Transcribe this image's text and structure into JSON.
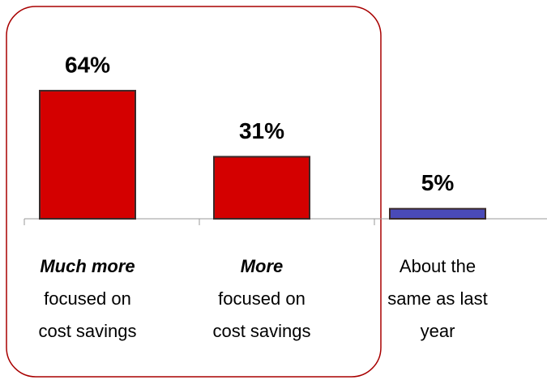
{
  "chart_data": {
    "type": "bar",
    "categories": [
      [
        "Much more",
        "focused on",
        "cost savings"
      ],
      [
        "More",
        "focused on",
        "cost savings"
      ],
      [
        "About the",
        "same as last",
        "year"
      ]
    ],
    "values": [
      64,
      31,
      5
    ],
    "value_labels": [
      "64%",
      "31%",
      "5%"
    ],
    "colors": [
      "#d40000",
      "#d40000",
      "#4a4ab8"
    ],
    "ylim": [
      0,
      100
    ]
  }
}
